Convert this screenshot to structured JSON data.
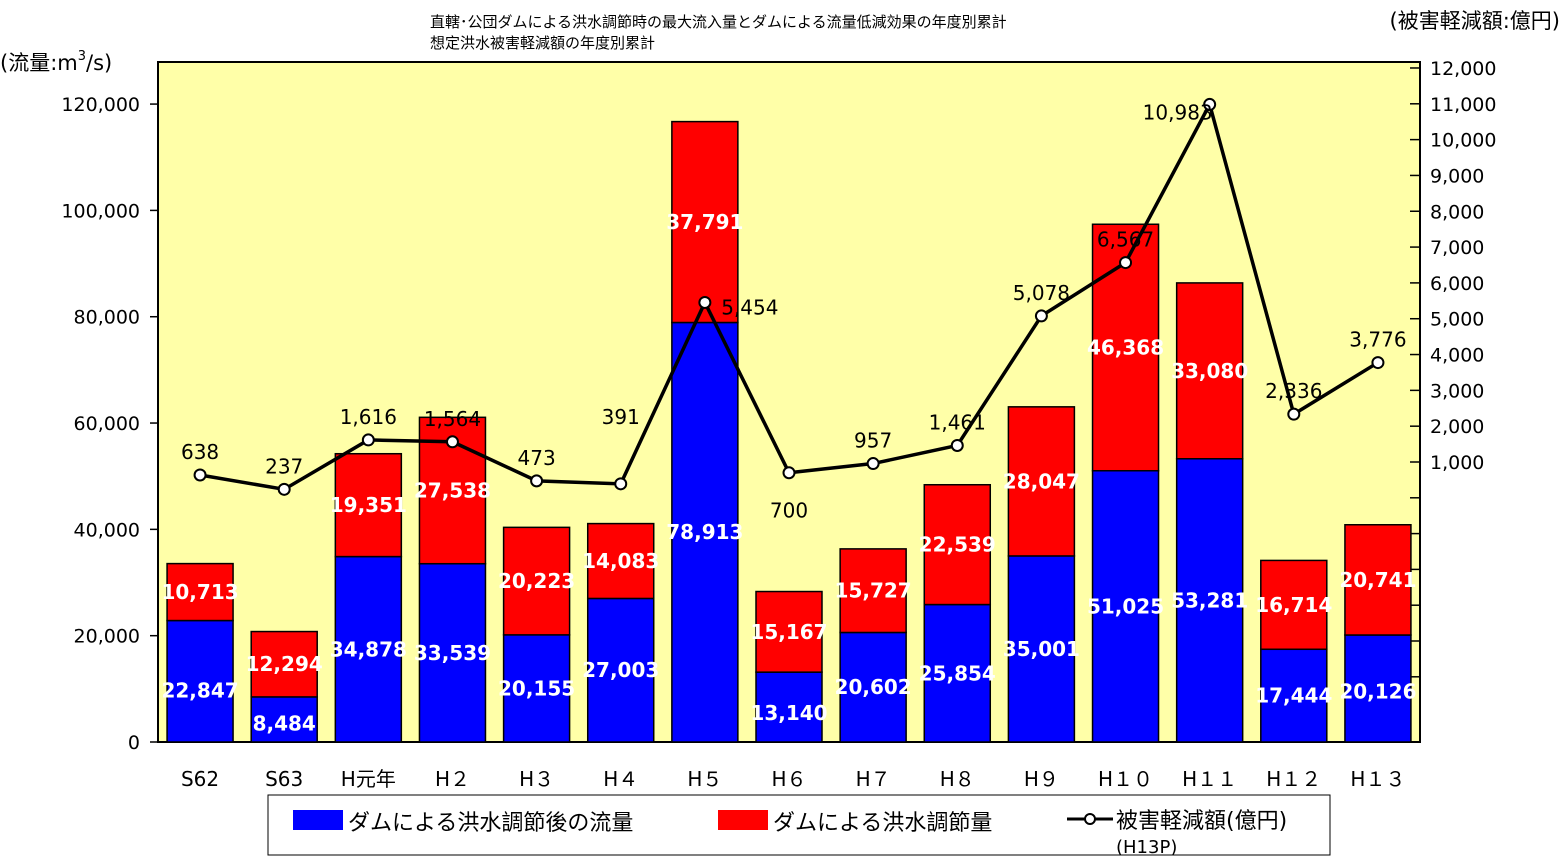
{
  "chart_data": {
    "type": "bar",
    "stacked": true,
    "title": "直轄･公団ダムによる洪水調節時の最大流入量とダムによる流量低減効果の年度別累計",
    "subtitle": "想定洪水被害軽減額の年度別累計",
    "ylabel_left_prefix": "(流量:m",
    "ylabel_left_sup": "3",
    "ylabel_left_suffix": "/s)",
    "ylabel_right": "(被害軽減額:億円)",
    "categories": [
      "S62",
      "S63",
      "H元年",
      "H２",
      "H３",
      "H４",
      "H５",
      "H６",
      "H７",
      "H８",
      "H９",
      "H１０",
      "H１１",
      "H１２",
      "H１３"
    ],
    "y_left": {
      "min": 0,
      "max": 120000,
      "ticks": [
        "0",
        "20,000",
        "40,000",
        "60,000",
        "80,000",
        "100,000",
        "120,000"
      ]
    },
    "y_right": {
      "min": 0,
      "max": 12000,
      "ticks": [
        "1,000",
        "2,000",
        "3,000",
        "4,000",
        "5,000",
        "6,000",
        "7,000",
        "8,000",
        "9,000",
        "10,000",
        "11,000",
        "12,000"
      ]
    },
    "series": [
      {
        "name": "ダムによる洪水調節後の流量",
        "type": "bar",
        "axis": "left",
        "color": "#0000ff",
        "values": [
          22847,
          8484,
          34878,
          33539,
          20155,
          27003,
          78913,
          13140,
          20602,
          25854,
          35001,
          51025,
          53281,
          17444,
          20126
        ],
        "labels": [
          "22,847",
          "8,484",
          "34,878",
          "33,539",
          "20,155",
          "27,003",
          "78,913",
          "13,140",
          "20,602",
          "25,854",
          "35,001",
          "51,025",
          "53,281",
          "17,444",
          "20,126"
        ]
      },
      {
        "name": "ダムによる洪水調節量",
        "type": "bar",
        "axis": "left",
        "color": "#ff0000",
        "values": [
          10713,
          12294,
          19351,
          27538,
          20223,
          14083,
          37791,
          15167,
          15727,
          22539,
          28047,
          46368,
          33080,
          16714,
          20741
        ],
        "labels": [
          "10,713",
          "12,294",
          "19,351",
          "27,538",
          "20,223",
          "14,083",
          "37,791",
          "15,167",
          "15,727",
          "22,539",
          "28,047",
          "46,368",
          "33,080",
          "16,714",
          "20,741"
        ]
      },
      {
        "name": "被害軽減額(億円)",
        "type": "line",
        "axis": "right",
        "color": "#000000",
        "values": [
          638,
          237,
          1616,
          1564,
          473,
          391,
          5454,
          700,
          957,
          1461,
          5078,
          6567,
          10983,
          2336,
          3776
        ],
        "labels": [
          "638",
          "237",
          "1,616",
          "1,564",
          "473",
          "391",
          "5,454",
          "700",
          "957",
          "1,461",
          "5,078",
          "6,567",
          "10,983",
          "2,336",
          "3,776"
        ]
      }
    ],
    "legend": {
      "position": "bottom",
      "note": "(H13P)"
    },
    "plot_background": "#ffffa8"
  }
}
